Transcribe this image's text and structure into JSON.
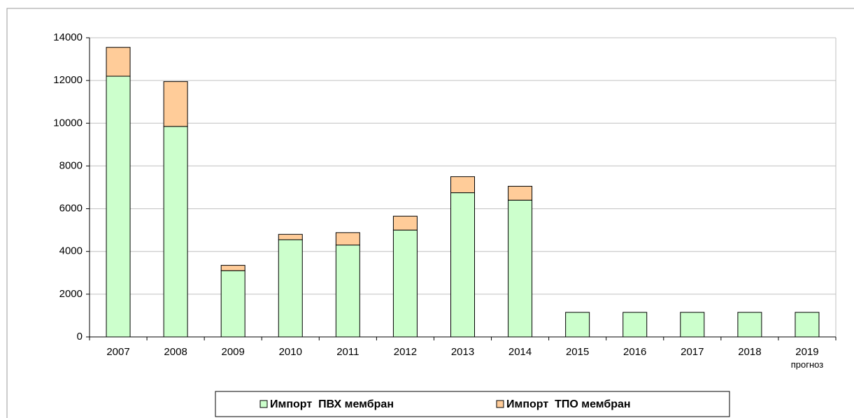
{
  "chart_data": {
    "type": "stacked_bar",
    "categories": [
      "2007",
      "2008",
      "2009",
      "2010",
      "2011",
      "2012",
      "2013",
      "2014",
      "2015",
      "2016",
      "2017",
      "2018",
      "2019 прогноз"
    ],
    "series": [
      {
        "name": "Импорт  ПВХ мембран",
        "color": "#ccffcc",
        "values": [
          12200,
          9850,
          3100,
          4550,
          4300,
          5000,
          6750,
          6400,
          1150,
          1150,
          1150,
          1150,
          1150
        ]
      },
      {
        "name": "Импорт  ТПО мембран",
        "color": "#ffcc99",
        "values": [
          1350,
          2100,
          250,
          250,
          580,
          650,
          750,
          650,
          0,
          0,
          0,
          0,
          0
        ]
      }
    ],
    "ylim": [
      0,
      14000
    ],
    "yticks": [
      0,
      2000,
      4000,
      6000,
      8000,
      10000,
      12000,
      14000
    ],
    "grid": true,
    "legend": "bottom"
  }
}
